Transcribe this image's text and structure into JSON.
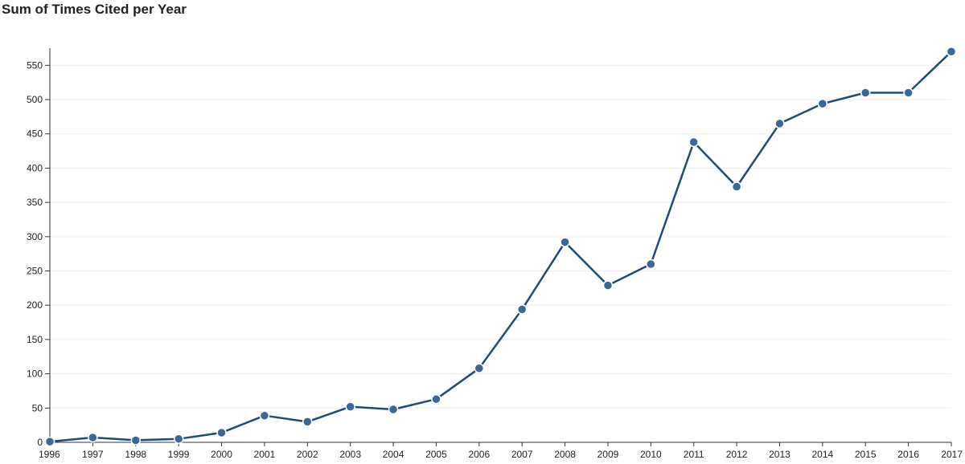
{
  "chart_data": {
    "type": "line",
    "title": "Sum of Times Cited per Year",
    "xlabel": "",
    "ylabel": "",
    "x": [
      "1996",
      "1997",
      "1998",
      "1999",
      "2000",
      "2001",
      "2002",
      "2003",
      "2004",
      "2005",
      "2006",
      "2007",
      "2008",
      "2009",
      "2010",
      "2011",
      "2012",
      "2013",
      "2014",
      "2015",
      "2016",
      "2017"
    ],
    "series": [
      {
        "values": [
          1,
          7,
          3,
          5,
          14,
          39,
          30,
          52,
          48,
          63,
          108,
          194,
          292,
          229,
          260,
          438,
          373,
          465,
          494,
          510,
          510,
          570
        ]
      }
    ],
    "ylim": [
      0,
      575
    ],
    "yticks": [
      "0",
      "50",
      "100",
      "150",
      "200",
      "250",
      "300",
      "350",
      "400",
      "450",
      "500",
      "550"
    ],
    "grid": true,
    "colors": {
      "line": "#1f4a7c",
      "marker": "#3a6898",
      "grid": "#eeeeee",
      "axis": "#333333"
    }
  }
}
